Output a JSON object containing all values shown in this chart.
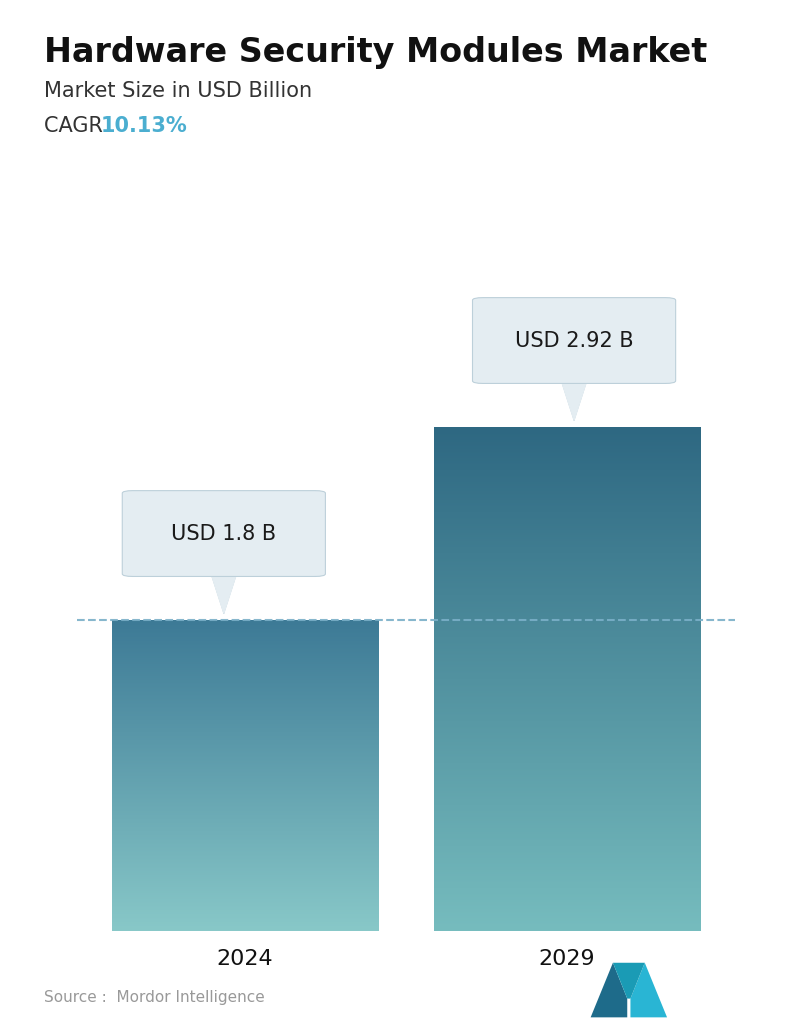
{
  "title": "Hardware Security Modules Market",
  "subtitle": "Market Size in USD Billion",
  "cagr_label": "CAGR  ",
  "cagr_value": "10.13%",
  "cagr_color": "#4BAED0",
  "categories": [
    "2024",
    "2029"
  ],
  "values": [
    1.8,
    2.92
  ],
  "bar_labels": [
    "USD 1.8 B",
    "USD 2.92 B"
  ],
  "bar_top_colors": [
    "#3D7A96",
    "#2E6882"
  ],
  "bar_bottom_colors": [
    "#88C8C8",
    "#76BCBE"
  ],
  "dashed_line_value": 1.8,
  "dashed_line_color": "#7AAFC8",
  "ylim": [
    0,
    3.6
  ],
  "source_text": "Source :  Mordor Intelligence",
  "bg_color": "#FFFFFF",
  "title_fontsize": 24,
  "subtitle_fontsize": 15,
  "cagr_fontsize": 15,
  "tick_fontsize": 16,
  "bar_label_fontsize": 15,
  "bar_positions": [
    0.27,
    0.73
  ],
  "bar_width": 0.38
}
